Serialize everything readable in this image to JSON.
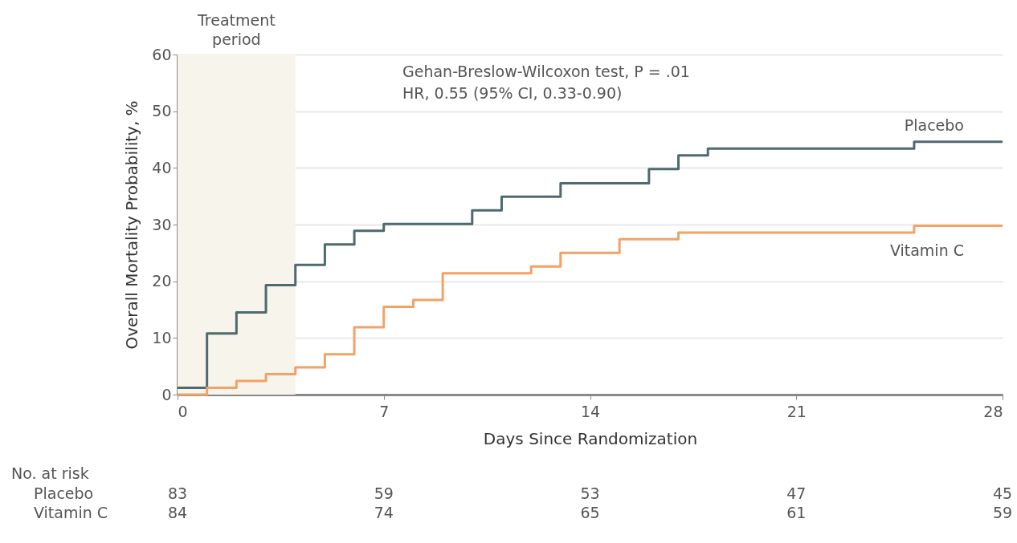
{
  "chart_data": {
    "type": "step",
    "xlabel": "Days Since Randomization",
    "ylabel": "Overall Mortality Probability, %",
    "xlim": [
      0,
      28
    ],
    "xticks": [
      0,
      7,
      14,
      21,
      28
    ],
    "ylim": [
      0,
      60
    ],
    "yticks": [
      0,
      10,
      20,
      30,
      40,
      50,
      60
    ],
    "grid": "y",
    "series": [
      {
        "name": "Placebo",
        "color": "#4d6a6e",
        "x": [
          0,
          1,
          2,
          3,
          4,
          5,
          6,
          7,
          10,
          11,
          13,
          16,
          17,
          18,
          25,
          28
        ],
        "values": [
          1.2,
          10.8,
          14.5,
          19.3,
          22.9,
          26.5,
          28.9,
          30.1,
          32.5,
          34.9,
          37.3,
          39.8,
          42.2,
          43.4,
          44.6,
          44.6
        ]
      },
      {
        "name": "Vitamin C",
        "color": "#f2a266",
        "x": [
          0,
          1,
          2,
          3,
          4,
          5,
          6,
          7,
          8,
          9,
          12,
          13,
          15,
          17,
          25,
          28
        ],
        "values": [
          0,
          1.2,
          2.4,
          3.6,
          4.8,
          7.1,
          11.9,
          15.5,
          16.7,
          21.4,
          22.6,
          25.0,
          27.4,
          28.6,
          29.8,
          29.8
        ]
      }
    ],
    "bands": [
      {
        "axis": "x",
        "from": 0,
        "to": 4,
        "label": "Treatment period",
        "color": "#f7f4eb"
      }
    ],
    "annotations": [
      "Gehan-Breslow-Wilcoxon test, P = .01",
      "HR, 0.55 (95% CI, 0.33-0.90)",
      "No. at risk",
      "Placebo",
      "83",
      "59",
      "53",
      "47",
      "45",
      "Vitamin C",
      "84",
      "74",
      "65",
      "61",
      "59"
    ]
  }
}
